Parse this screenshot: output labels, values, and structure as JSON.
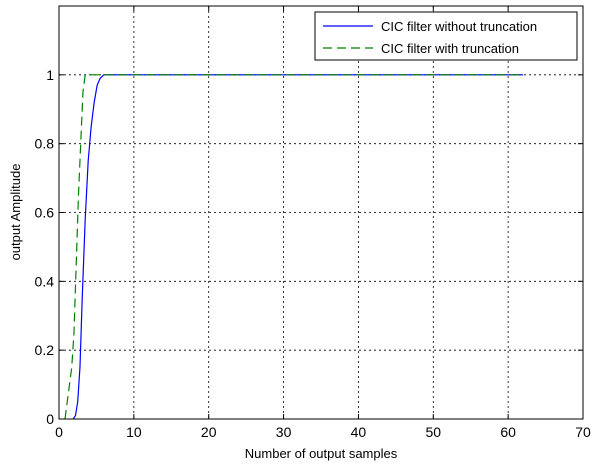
{
  "chart_data": {
    "type": "line",
    "title": "",
    "xlabel": "Number of output samples",
    "ylabel": "output Amplitude",
    "xlim": [
      0,
      70
    ],
    "ylim": [
      0,
      1.2
    ],
    "grid": true,
    "x_ticks": [
      0,
      10,
      20,
      30,
      40,
      50,
      60,
      70
    ],
    "y_ticks": [
      0,
      0.2,
      0.4,
      0.6,
      0.8,
      1
    ],
    "legend_position": "top-right",
    "series": [
      {
        "name": "CIC filter without truncation",
        "color": "#0000ff",
        "dash": "solid",
        "x": [
          1.9,
          2.2,
          2.5,
          2.8,
          3.1,
          3.5,
          3.9,
          4.3,
          4.7,
          5.1,
          5.5,
          6.0,
          62
        ],
        "y": [
          0,
          0.01,
          0.05,
          0.15,
          0.35,
          0.58,
          0.75,
          0.85,
          0.92,
          0.97,
          0.99,
          1.0,
          1.0
        ]
      },
      {
        "name": "CIC filter with truncation",
        "color": "#008000",
        "dash": "dashed",
        "x": [
          0.8,
          1.1,
          1.4,
          1.7,
          2.0,
          2.3,
          2.6,
          2.9,
          3.2,
          3.5,
          62
        ],
        "y": [
          0,
          0.05,
          0.1,
          0.15,
          0.25,
          0.45,
          0.65,
          0.8,
          0.95,
          1.0,
          1.0
        ]
      }
    ]
  }
}
